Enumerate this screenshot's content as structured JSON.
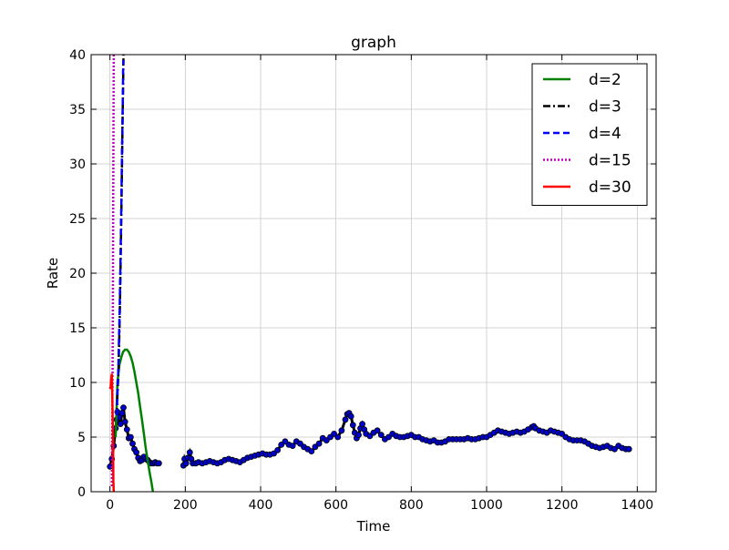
{
  "chart_data": {
    "type": "line",
    "title": "graph",
    "xlabel": "Time",
    "ylabel": "Rate",
    "xlim": [
      -50,
      1450
    ],
    "ylim": [
      0,
      40
    ],
    "x_ticks": [
      "0",
      "200",
      "400",
      "600",
      "800",
      "1000",
      "1200",
      "1400"
    ],
    "y_ticks": [
      "0",
      "5",
      "10",
      "15",
      "20",
      "25",
      "30",
      "35",
      "40"
    ],
    "grid": true,
    "legend_position": "top-right",
    "observed_points": {
      "color": "#0000cc",
      "segments": [
        [
          [
            0,
            2.3
          ],
          [
            5,
            3.0
          ],
          [
            10,
            4.2
          ],
          [
            15,
            5.8
          ],
          [
            18,
            6.6
          ],
          [
            20,
            7.3
          ],
          [
            24,
            6.8
          ],
          [
            28,
            6.2
          ],
          [
            32,
            7.2
          ],
          [
            36,
            7.7
          ],
          [
            40,
            6.4
          ],
          [
            45,
            5.7
          ],
          [
            50,
            4.9
          ],
          [
            55,
            5.0
          ],
          [
            60,
            4.4
          ],
          [
            65,
            3.9
          ],
          [
            70,
            3.6
          ],
          [
            75,
            3.1
          ],
          [
            80,
            2.8
          ],
          [
            85,
            2.9
          ],
          [
            90,
            3.2
          ],
          [
            95,
            3.0
          ],
          [
            100,
            2.9
          ],
          [
            105,
            2.7
          ],
          [
            110,
            2.6
          ],
          [
            115,
            2.6
          ],
          [
            120,
            2.7
          ],
          [
            125,
            2.6
          ],
          [
            130,
            2.6
          ]
        ],
        [
          [
            195,
            2.4
          ],
          [
            198,
            3.0
          ],
          [
            202,
            2.6
          ],
          [
            207,
            3.1
          ],
          [
            212,
            3.6
          ],
          [
            216,
            3.0
          ],
          [
            220,
            2.6
          ],
          [
            228,
            2.6
          ],
          [
            235,
            2.7
          ],
          [
            245,
            2.6
          ],
          [
            255,
            2.7
          ],
          [
            265,
            2.8
          ],
          [
            275,
            2.7
          ],
          [
            285,
            2.6
          ],
          [
            295,
            2.7
          ],
          [
            305,
            2.9
          ],
          [
            315,
            3.0
          ],
          [
            325,
            2.9
          ],
          [
            335,
            2.8
          ],
          [
            345,
            2.7
          ],
          [
            355,
            2.9
          ],
          [
            365,
            3.1
          ],
          [
            375,
            3.2
          ],
          [
            385,
            3.3
          ],
          [
            395,
            3.4
          ],
          [
            405,
            3.5
          ],
          [
            415,
            3.4
          ],
          [
            425,
            3.4
          ],
          [
            435,
            3.5
          ],
          [
            445,
            3.8
          ],
          [
            455,
            4.3
          ],
          [
            465,
            4.6
          ],
          [
            475,
            4.3
          ],
          [
            485,
            4.2
          ],
          [
            495,
            4.6
          ],
          [
            505,
            4.4
          ],
          [
            515,
            4.1
          ],
          [
            525,
            3.9
          ],
          [
            535,
            3.7
          ],
          [
            545,
            4.1
          ],
          [
            555,
            4.4
          ],
          [
            565,
            4.9
          ],
          [
            575,
            4.7
          ],
          [
            585,
            5.0
          ],
          [
            595,
            5.3
          ],
          [
            605,
            5.0
          ],
          [
            615,
            5.6
          ],
          [
            625,
            6.6
          ],
          [
            630,
            7.1
          ],
          [
            635,
            7.2
          ],
          [
            640,
            6.9
          ],
          [
            645,
            6.1
          ],
          [
            650,
            5.4
          ],
          [
            655,
            4.9
          ],
          [
            660,
            5.2
          ],
          [
            665,
            5.8
          ],
          [
            670,
            6.2
          ],
          [
            675,
            5.7
          ],
          [
            680,
            5.3
          ],
          [
            690,
            5.1
          ],
          [
            700,
            5.4
          ],
          [
            710,
            5.6
          ],
          [
            720,
            5.2
          ],
          [
            730,
            4.8
          ],
          [
            740,
            5.0
          ],
          [
            750,
            5.3
          ],
          [
            760,
            5.1
          ],
          [
            770,
            5.0
          ],
          [
            780,
            5.0
          ],
          [
            790,
            5.1
          ],
          [
            800,
            5.2
          ],
          [
            810,
            5.0
          ],
          [
            820,
            5.0
          ],
          [
            830,
            4.8
          ],
          [
            840,
            4.7
          ],
          [
            850,
            4.6
          ],
          [
            860,
            4.7
          ],
          [
            870,
            4.5
          ],
          [
            880,
            4.5
          ],
          [
            890,
            4.6
          ],
          [
            900,
            4.8
          ],
          [
            910,
            4.8
          ],
          [
            920,
            4.8
          ],
          [
            930,
            4.8
          ],
          [
            940,
            4.8
          ],
          [
            950,
            4.9
          ],
          [
            960,
            4.8
          ],
          [
            970,
            4.8
          ],
          [
            980,
            4.9
          ],
          [
            990,
            5.0
          ],
          [
            1000,
            5.0
          ],
          [
            1010,
            5.2
          ],
          [
            1020,
            5.4
          ],
          [
            1030,
            5.6
          ],
          [
            1040,
            5.5
          ],
          [
            1050,
            5.4
          ],
          [
            1060,
            5.3
          ],
          [
            1070,
            5.4
          ],
          [
            1080,
            5.5
          ],
          [
            1090,
            5.4
          ],
          [
            1100,
            5.5
          ],
          [
            1110,
            5.7
          ],
          [
            1120,
            5.9
          ],
          [
            1125,
            6.0
          ],
          [
            1130,
            5.8
          ],
          [
            1140,
            5.6
          ],
          [
            1150,
            5.5
          ],
          [
            1160,
            5.4
          ],
          [
            1170,
            5.6
          ],
          [
            1180,
            5.5
          ],
          [
            1190,
            5.4
          ],
          [
            1200,
            5.3
          ],
          [
            1210,
            5.0
          ],
          [
            1220,
            4.8
          ],
          [
            1230,
            4.7
          ],
          [
            1240,
            4.7
          ],
          [
            1250,
            4.7
          ],
          [
            1260,
            4.6
          ],
          [
            1270,
            4.4
          ],
          [
            1280,
            4.2
          ],
          [
            1290,
            4.1
          ],
          [
            1300,
            4.0
          ],
          [
            1310,
            4.1
          ],
          [
            1320,
            4.2
          ],
          [
            1330,
            4.0
          ],
          [
            1340,
            3.9
          ],
          [
            1350,
            4.2
          ],
          [
            1360,
            4.0
          ],
          [
            1370,
            3.9
          ],
          [
            1378,
            3.9
          ]
        ]
      ]
    },
    "series": [
      {
        "name": "d=2",
        "color": "#008000",
        "dash": "solid",
        "points": [
          [
            15,
            5.0
          ],
          [
            20,
            10.0
          ],
          [
            25,
            11.6
          ],
          [
            30,
            12.3
          ],
          [
            35,
            12.8
          ],
          [
            40,
            13.0
          ],
          [
            45,
            13.0
          ],
          [
            50,
            12.8
          ],
          [
            55,
            12.4
          ],
          [
            60,
            11.8
          ],
          [
            65,
            11.0
          ],
          [
            70,
            10.0
          ],
          [
            75,
            9.0
          ],
          [
            80,
            7.8
          ],
          [
            85,
            6.6
          ],
          [
            90,
            5.3
          ],
          [
            95,
            4.0
          ],
          [
            100,
            2.9
          ],
          [
            105,
            1.8
          ],
          [
            110,
            0.9
          ],
          [
            114,
            0.0
          ]
        ]
      },
      {
        "name": "d=3",
        "color": "#000000",
        "dash": "dashdot",
        "points": [
          [
            18,
            7.0
          ],
          [
            20,
            9.0
          ],
          [
            22,
            10.5
          ],
          [
            24,
            13.0
          ],
          [
            26,
            16.0
          ],
          [
            28,
            20.0
          ],
          [
            30,
            25.0
          ],
          [
            32,
            30.0
          ],
          [
            34,
            35.0
          ],
          [
            35,
            37.0
          ],
          [
            36,
            40.0
          ]
        ]
      },
      {
        "name": "d=4",
        "color": "#0000ff",
        "dash": "dashed",
        "points": [
          [
            18,
            7.0
          ],
          [
            20,
            9.0
          ],
          [
            22,
            11.0
          ],
          [
            24,
            14.0
          ],
          [
            26,
            17.0
          ],
          [
            28,
            21.0
          ],
          [
            30,
            26.0
          ],
          [
            32,
            31.0
          ],
          [
            34,
            35.5
          ],
          [
            35,
            38.5
          ],
          [
            36,
            39.5
          ]
        ]
      },
      {
        "name": "d=15",
        "color": "#bf00bf",
        "dash": "dotted",
        "points": [
          [
            5,
            0.5
          ],
          [
            6,
            5.0
          ],
          [
            7,
            12.0
          ],
          [
            8,
            20.0
          ],
          [
            9,
            30.0
          ],
          [
            10,
            40.0
          ]
        ]
      },
      {
        "name": "d=30",
        "color": "#ff0000",
        "dash": "solid",
        "points": [
          [
            0,
            9.4
          ],
          [
            2,
            9.6
          ],
          [
            3,
            10.2
          ],
          [
            5,
            10.8
          ],
          [
            6,
            9.5
          ],
          [
            8,
            5.0
          ],
          [
            9,
            1.0
          ],
          [
            10,
            0.0
          ]
        ]
      }
    ]
  }
}
